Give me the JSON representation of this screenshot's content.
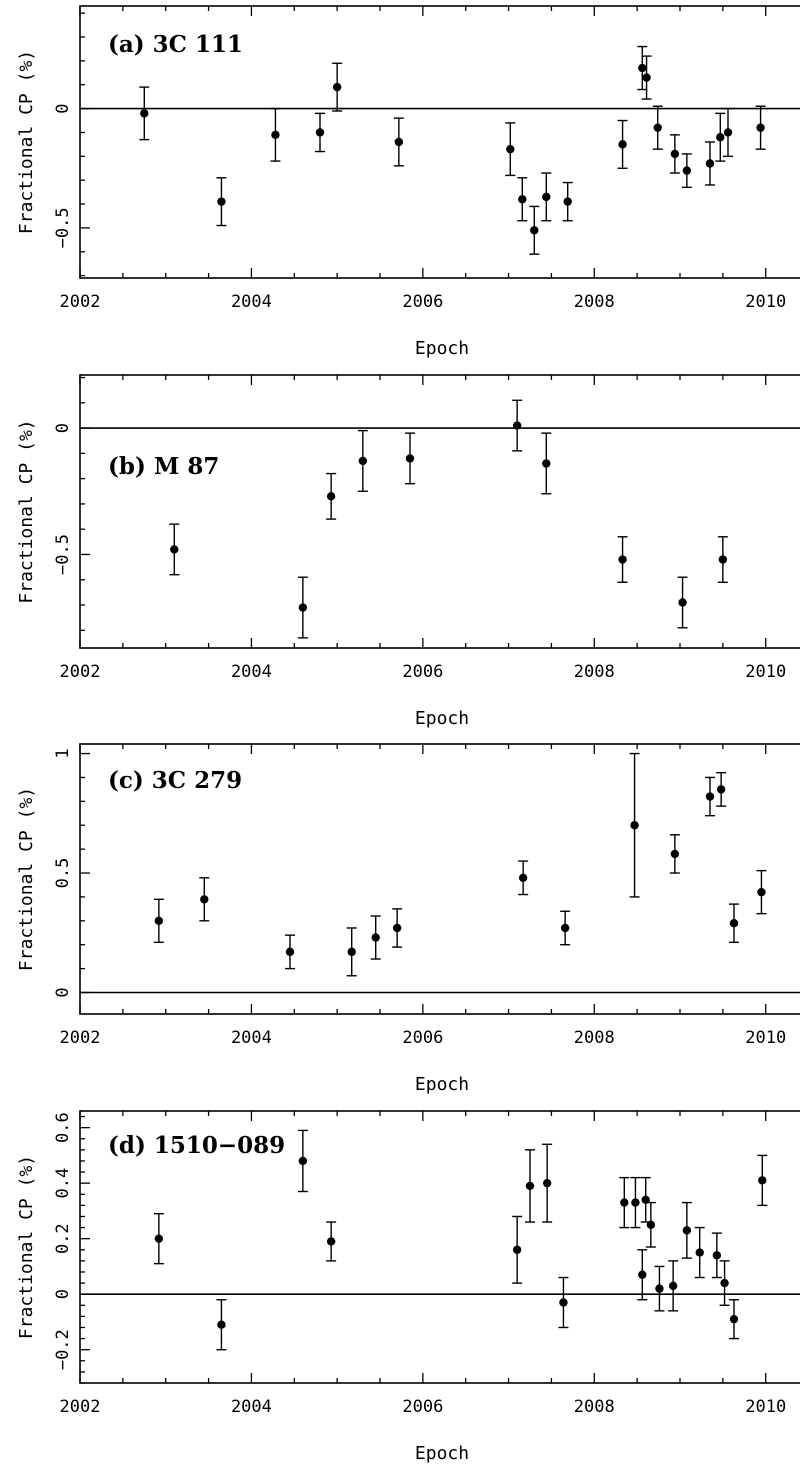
{
  "chart_data": [
    {
      "type": "scatter",
      "title": "(a) 3C 111",
      "xlabel": "Epoch",
      "ylabel": "Fractional CP (%)",
      "xlim": [
        2002,
        2010.4
      ],
      "ylim": [
        -0.71,
        0.43
      ],
      "xticks": [
        2002,
        2004,
        2006,
        2008,
        2010
      ],
      "yticks": [
        -0.5,
        0
      ],
      "ytick_labels": [
        "−0.5",
        "0"
      ],
      "zero_line": true,
      "points": [
        {
          "x": 2002.75,
          "y": -0.02,
          "err": 0.11
        },
        {
          "x": 2003.65,
          "y": -0.39,
          "err": 0.1
        },
        {
          "x": 2004.28,
          "y": -0.11,
          "err": 0.11
        },
        {
          "x": 2004.8,
          "y": -0.1,
          "err": 0.08
        },
        {
          "x": 2005.0,
          "y": 0.09,
          "err": 0.1
        },
        {
          "x": 2005.72,
          "y": -0.14,
          "err": 0.1
        },
        {
          "x": 2007.02,
          "y": -0.17,
          "err": 0.11
        },
        {
          "x": 2007.16,
          "y": -0.38,
          "err": 0.09
        },
        {
          "x": 2007.3,
          "y": -0.51,
          "err": 0.1
        },
        {
          "x": 2007.44,
          "y": -0.37,
          "err": 0.1
        },
        {
          "x": 2007.69,
          "y": -0.39,
          "err": 0.08
        },
        {
          "x": 2008.33,
          "y": -0.15,
          "err": 0.1
        },
        {
          "x": 2008.56,
          "y": 0.17,
          "err": 0.09
        },
        {
          "x": 2008.61,
          "y": 0.13,
          "err": 0.09
        },
        {
          "x": 2008.74,
          "y": -0.08,
          "err": 0.09
        },
        {
          "x": 2008.94,
          "y": -0.19,
          "err": 0.08
        },
        {
          "x": 2009.08,
          "y": -0.26,
          "err": 0.07
        },
        {
          "x": 2009.35,
          "y": -0.23,
          "err": 0.09
        },
        {
          "x": 2009.47,
          "y": -0.12,
          "err": 0.1
        },
        {
          "x": 2009.56,
          "y": -0.1,
          "err": 0.1
        },
        {
          "x": 2009.94,
          "y": -0.08,
          "err": 0.09
        }
      ]
    },
    {
      "type": "scatter",
      "title": "(b) M 87",
      "xlabel": "Epoch",
      "ylabel": "Fractional CP (%)",
      "xlim": [
        2002,
        2010.4
      ],
      "ylim": [
        -0.87,
        0.21
      ],
      "xticks": [
        2002,
        2004,
        2006,
        2008,
        2010
      ],
      "yticks": [
        -0.5,
        0
      ],
      "ytick_labels": [
        "−0.5",
        "0"
      ],
      "zero_line": true,
      "points": [
        {
          "x": 2003.1,
          "y": -0.48,
          "err": 0.1
        },
        {
          "x": 2004.6,
          "y": -0.71,
          "err": 0.12
        },
        {
          "x": 2004.93,
          "y": -0.27,
          "err": 0.09
        },
        {
          "x": 2005.3,
          "y": -0.13,
          "err": 0.12
        },
        {
          "x": 2005.85,
          "y": -0.12,
          "err": 0.1
        },
        {
          "x": 2007.1,
          "y": 0.01,
          "err": 0.1
        },
        {
          "x": 2007.44,
          "y": -0.14,
          "err": 0.12
        },
        {
          "x": 2008.33,
          "y": -0.52,
          "err": 0.09
        },
        {
          "x": 2009.03,
          "y": -0.69,
          "err": 0.1
        },
        {
          "x": 2009.5,
          "y": -0.52,
          "err": 0.09
        }
      ]
    },
    {
      "type": "scatter",
      "title": "(c) 3C 279",
      "xlabel": "Epoch",
      "ylabel": "Fractional CP (%)",
      "xlim": [
        2002,
        2010.4
      ],
      "ylim": [
        -0.09,
        1.04
      ],
      "xticks": [
        2002,
        2004,
        2006,
        2008,
        2010
      ],
      "yticks": [
        0,
        0.5,
        1
      ],
      "ytick_labels": [
        "0",
        "0.5",
        "1"
      ],
      "zero_line": true,
      "points": [
        {
          "x": 2002.92,
          "y": 0.3,
          "err": 0.09
        },
        {
          "x": 2003.45,
          "y": 0.39,
          "err": 0.09
        },
        {
          "x": 2004.45,
          "y": 0.17,
          "err": 0.07
        },
        {
          "x": 2005.17,
          "y": 0.17,
          "err": 0.1
        },
        {
          "x": 2005.45,
          "y": 0.23,
          "err": 0.09
        },
        {
          "x": 2005.7,
          "y": 0.27,
          "err": 0.08
        },
        {
          "x": 2007.17,
          "y": 0.48,
          "err": 0.07
        },
        {
          "x": 2007.66,
          "y": 0.27,
          "err": 0.07
        },
        {
          "x": 2008.47,
          "y": 0.7,
          "err": 0.3
        },
        {
          "x": 2008.94,
          "y": 0.58,
          "err": 0.08
        },
        {
          "x": 2009.35,
          "y": 0.82,
          "err": 0.08
        },
        {
          "x": 2009.48,
          "y": 0.85,
          "err": 0.07
        },
        {
          "x": 2009.63,
          "y": 0.29,
          "err": 0.08
        },
        {
          "x": 2009.95,
          "y": 0.42,
          "err": 0.09
        }
      ]
    },
    {
      "type": "scatter",
      "title": "(d) 1510−089",
      "xlabel": "Epoch",
      "ylabel": "Fractional CP (%)",
      "xlim": [
        2002,
        2010.4
      ],
      "ylim": [
        -0.32,
        0.66
      ],
      "xticks": [
        2002,
        2004,
        2006,
        2008,
        2010
      ],
      "yticks": [
        -0.2,
        0,
        0.2,
        0.4,
        0.6
      ],
      "ytick_labels": [
        "−0.2",
        "0",
        "0.2",
        "0.4",
        "0.6"
      ],
      "zero_line": true,
      "points": [
        {
          "x": 2002.92,
          "y": 0.2,
          "err": 0.09
        },
        {
          "x": 2003.65,
          "y": -0.11,
          "err": 0.09
        },
        {
          "x": 2004.6,
          "y": 0.48,
          "err": 0.11
        },
        {
          "x": 2004.93,
          "y": 0.19,
          "err": 0.07
        },
        {
          "x": 2007.1,
          "y": 0.16,
          "err": 0.12
        },
        {
          "x": 2007.25,
          "y": 0.39,
          "err": 0.13
        },
        {
          "x": 2007.45,
          "y": 0.4,
          "err": 0.14
        },
        {
          "x": 2007.64,
          "y": -0.03,
          "err": 0.09
        },
        {
          "x": 2008.35,
          "y": 0.33,
          "err": 0.09
        },
        {
          "x": 2008.48,
          "y": 0.33,
          "err": 0.09
        },
        {
          "x": 2008.56,
          "y": 0.07,
          "err": 0.09
        },
        {
          "x": 2008.6,
          "y": 0.34,
          "err": 0.08
        },
        {
          "x": 2008.66,
          "y": 0.25,
          "err": 0.08
        },
        {
          "x": 2008.76,
          "y": 0.02,
          "err": 0.08
        },
        {
          "x": 2008.92,
          "y": 0.03,
          "err": 0.09
        },
        {
          "x": 2009.08,
          "y": 0.23,
          "err": 0.1
        },
        {
          "x": 2009.23,
          "y": 0.15,
          "err": 0.09
        },
        {
          "x": 2009.43,
          "y": 0.14,
          "err": 0.08
        },
        {
          "x": 2009.52,
          "y": 0.04,
          "err": 0.08
        },
        {
          "x": 2009.63,
          "y": -0.09,
          "err": 0.07
        },
        {
          "x": 2009.96,
          "y": 0.41,
          "err": 0.09
        }
      ]
    }
  ]
}
